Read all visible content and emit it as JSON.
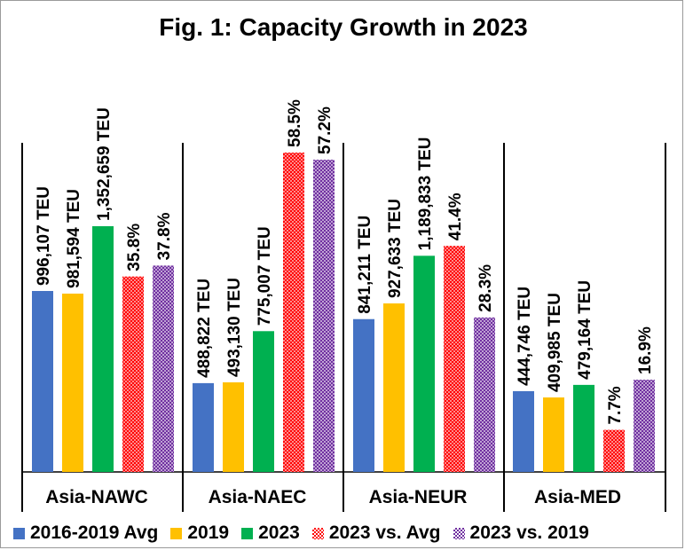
{
  "chart_data": {
    "type": "bar",
    "title": "Fig. 1: Capacity Growth in 2023",
    "categories": [
      "Asia-NAWC",
      "Asia-NAEC",
      "Asia-NEUR",
      "Asia-MED"
    ],
    "series": [
      {
        "name": "2016-2019 Avg",
        "unit": "TEU",
        "color": "#4472c4",
        "pattern": "solid",
        "values": [
          996107,
          488822,
          841211,
          444746
        ],
        "labels": [
          "996,107 TEU",
          "488,822 TEU",
          "841,211 TEU",
          "444,746 TEU"
        ]
      },
      {
        "name": "2019",
        "unit": "TEU",
        "color": "#ffc000",
        "pattern": "solid",
        "values": [
          981594,
          493130,
          927633,
          409985
        ],
        "labels": [
          "981,594 TEU",
          "493,130 TEU",
          "927,633 TEU",
          "409,985 TEU"
        ]
      },
      {
        "name": "2023",
        "unit": "TEU",
        "color": "#00b050",
        "pattern": "solid",
        "values": [
          1352659,
          775007,
          1189833,
          479164
        ],
        "labels": [
          "1,352,659 TEU",
          "775,007 TEU",
          "1,189,833 TEU",
          "479,164 TEU"
        ]
      },
      {
        "name": "2023 vs. Avg",
        "unit": "%",
        "color": "#ff0000",
        "pattern": "checker",
        "values": [
          35.8,
          58.5,
          41.4,
          7.7
        ],
        "labels": [
          "35.8%",
          "58.5%",
          "41.4%",
          "7.7%"
        ]
      },
      {
        "name": "2023 vs. 2019",
        "unit": "%",
        "color": "#7030a0",
        "pattern": "checker",
        "values": [
          37.8,
          57.2,
          28.3,
          16.9
        ],
        "labels": [
          "37.8%",
          "57.2%",
          "28.3%",
          "16.9%"
        ]
      }
    ],
    "legend_position": "bottom",
    "grid": false
  }
}
